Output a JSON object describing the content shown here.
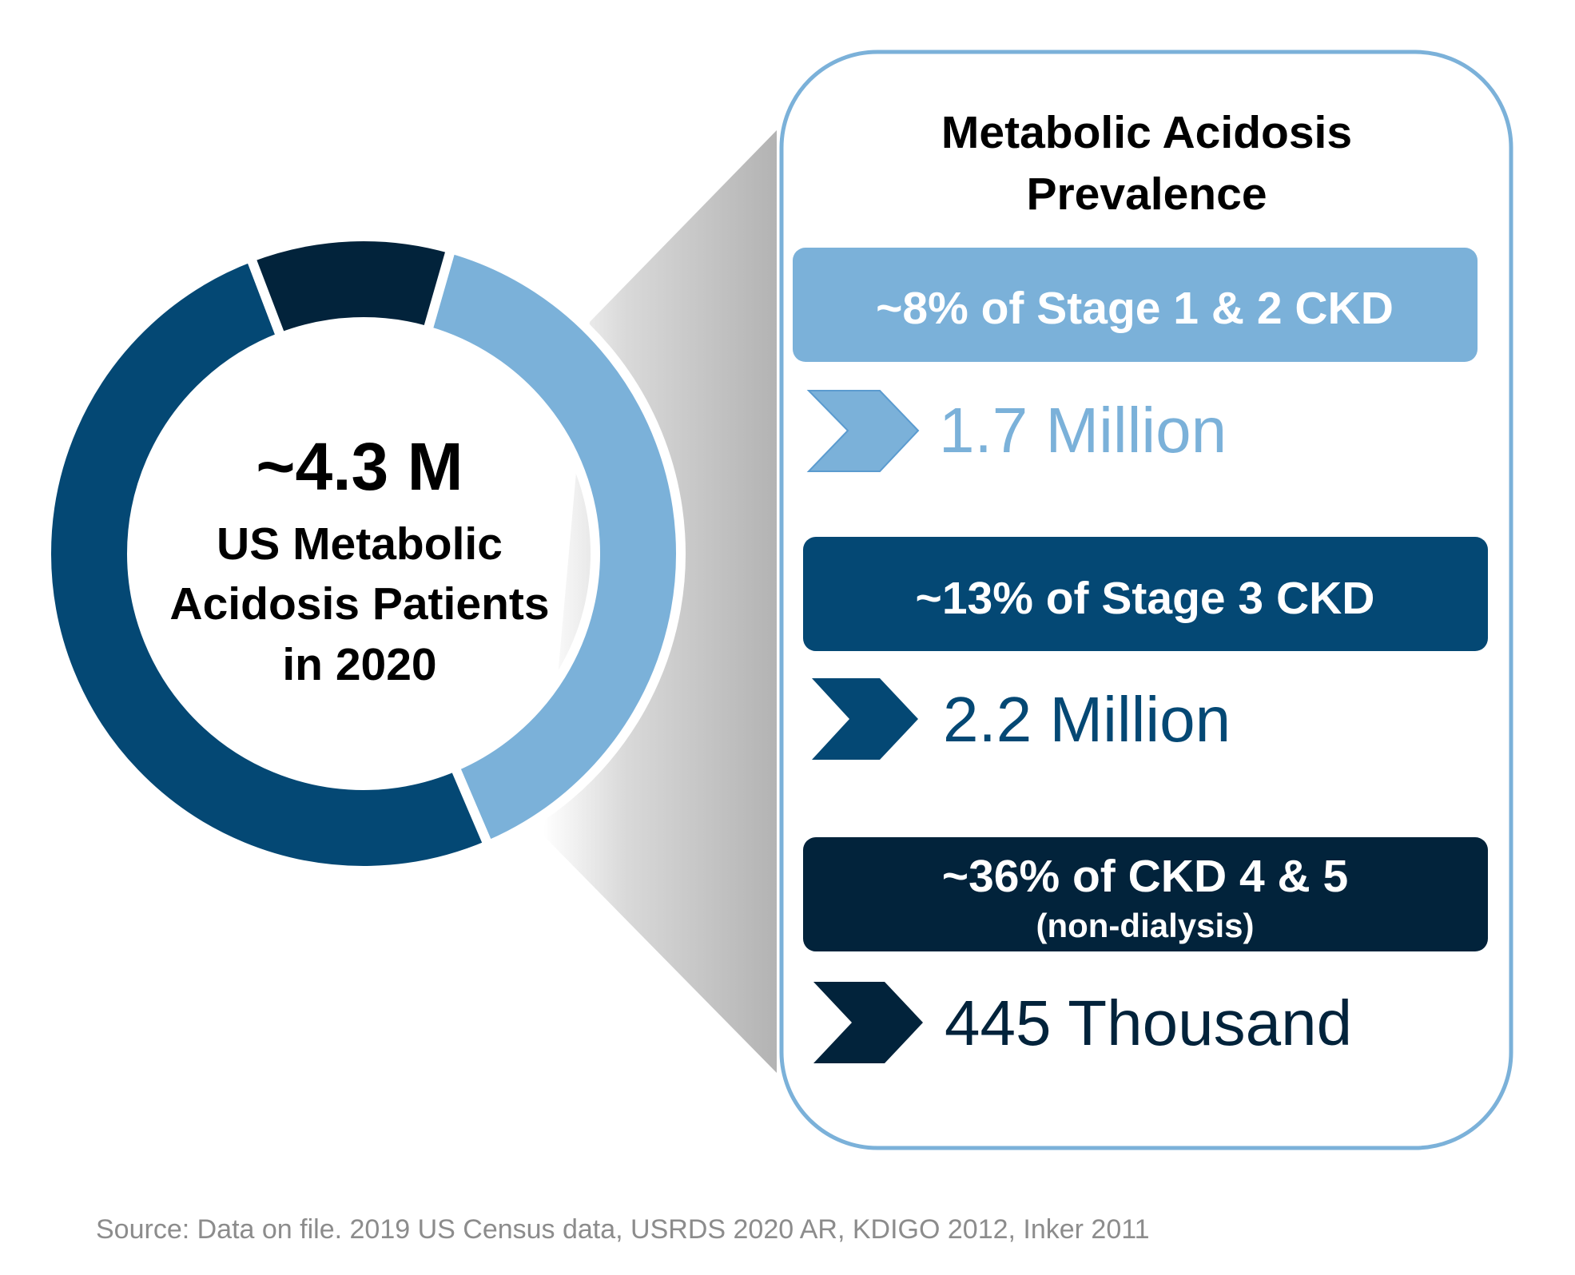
{
  "chart_data": {
    "type": "pie",
    "style": "donut",
    "center_value": "~4.3 M",
    "center_label_lines": [
      "US Metabolic",
      "Acidosis Patients",
      "in 2020"
    ],
    "panel_title_lines": [
      "Metabolic Acidosis",
      "Prevalence"
    ],
    "segments": [
      {
        "label": "~8% of Stage 1 & 2 CKD",
        "sublabel": "",
        "value": 1.7,
        "unit": "million",
        "value_text": "1.7 Million",
        "color": "#7BB1D9"
      },
      {
        "label": "~13% of Stage 3 CKD",
        "sublabel": "",
        "value": 2.2,
        "unit": "million",
        "value_text": "2.2 Million",
        "color": "#044874"
      },
      {
        "label": "~36% of CKD 4 & 5",
        "sublabel": "(non-dialysis)",
        "value": 0.445,
        "unit": "million",
        "value_text": "445 Thousand",
        "color": "#02233B"
      }
    ],
    "panel_border_color": "#7BB1D9",
    "source": "Source: Data on file. 2019 US Census data, USRDS 2020 AR, KDIGO 2012, Inker 2011"
  }
}
